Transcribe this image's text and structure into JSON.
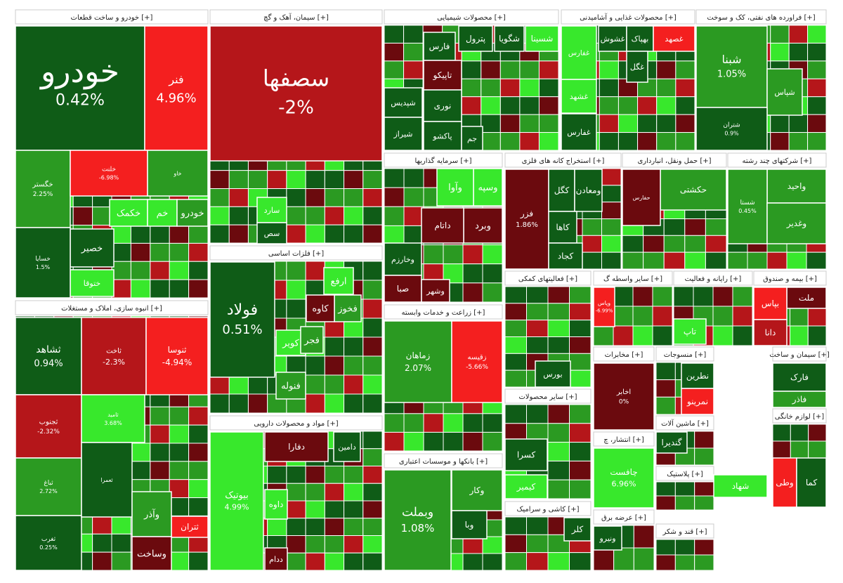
{
  "chart_data": {
    "type": "treemap",
    "colors": {
      "dark_green": "#0f5c17",
      "mid_green": "#2b9a22",
      "light_green": "#38e82c",
      "dark_red": "#6b0a0e",
      "mid_red": "#b5161a",
      "bright_red": "#f41f1f"
    },
    "sectors": [
      {
        "title": "خودرو و ساخت قطعات [+]",
        "stocks": [
          {
            "name": "خودرو",
            "change": "0.42%",
            "color": "dark_green"
          },
          {
            "name": "فنر",
            "change": "4.96%",
            "color": "bright_red"
          },
          {
            "name": "خگستر",
            "change": "2.25%",
            "color": "mid_green"
          },
          {
            "name": "خلنت",
            "change": "-6.98%",
            "color": "bright_red"
          },
          {
            "name": "خاو",
            "change": "",
            "color": "mid_green"
          },
          {
            "name": "خکمک",
            "change": "",
            "color": "light_green"
          },
          {
            "name": "خم",
            "change": "",
            "color": "light_green"
          },
          {
            "name": "خصیر",
            "change": "",
            "color": "dark_green"
          },
          {
            "name": "خودرو",
            "change": "",
            "color": "mid_green"
          },
          {
            "name": "ختوقا",
            "change": "",
            "color": "light_green"
          },
          {
            "name": "خسایا",
            "change": "1.5%",
            "color": "dark_green"
          }
        ]
      },
      {
        "title": "انبوه سازی، املاک و مستغلات [+]",
        "stocks": [
          {
            "name": "ثشاهد",
            "change": "0.94%",
            "color": "dark_green"
          },
          {
            "name": "ثاخت",
            "change": "-2.3%",
            "color": "mid_red"
          },
          {
            "name": "ثنوسا",
            "change": "-4.94%",
            "color": "bright_red"
          },
          {
            "name": "ثجنوب",
            "change": "-2.32%",
            "color": "mid_red"
          },
          {
            "name": "ثباغ",
            "change": "2.72%",
            "color": "mid_green"
          },
          {
            "name": "ثغرب",
            "change": "0.25%",
            "color": "dark_green"
          },
          {
            "name": "ثامید",
            "change": "3.68%",
            "color": "light_green"
          },
          {
            "name": "ثعمرا",
            "change": "",
            "color": "dark_green"
          },
          {
            "name": "ثتران",
            "change": "",
            "color": "bright_red"
          },
          {
            "name": "وآذر",
            "change": "",
            "color": "mid_green"
          },
          {
            "name": "وساخت",
            "change": "",
            "color": "dark_red"
          }
        ]
      },
      {
        "title": "سیمان، آهک و گچ [+]",
        "stocks": [
          {
            "name": "سصفها",
            "change": "-2%",
            "color": "mid_red"
          },
          {
            "name": "سارد",
            "change": "",
            "color": "light_green"
          },
          {
            "name": "سص",
            "change": "",
            "color": "dark_green"
          }
        ]
      },
      {
        "title": "فلزات اساسی [+]",
        "stocks": [
          {
            "name": "فولاد",
            "change": "0.51%",
            "color": "dark_green"
          },
          {
            "name": "ارفع",
            "change": "",
            "color": "light_green"
          },
          {
            "name": "فخوز",
            "change": "",
            "color": "mid_green"
          },
          {
            "name": "کاوه",
            "change": "",
            "color": "dark_red"
          },
          {
            "name": "کویر",
            "change": "",
            "color": "light_green"
          },
          {
            "name": "فجر",
            "change": "",
            "color": "mid_green"
          },
          {
            "name": "فنوله",
            "change": "",
            "color": "mid_green"
          }
        ]
      },
      {
        "title": "مواد و محصولات دارویی [+]",
        "stocks": [
          {
            "name": "بیوتیک",
            "change": "4.99%",
            "color": "light_green"
          },
          {
            "name": "دامین",
            "change": "",
            "color": "dark_green"
          },
          {
            "name": "دفارا",
            "change": "",
            "color": "dark_red"
          },
          {
            "name": "داوه",
            "change": "",
            "color": "light_green"
          },
          {
            "name": "ددام",
            "change": "",
            "color": "dark_red"
          }
        ]
      },
      {
        "title": "محصولات شیمیایی [+]",
        "stocks": [
          {
            "name": "فارس",
            "change": "",
            "color": "dark_green"
          },
          {
            "name": "شگویا",
            "change": "",
            "color": "dark_green"
          },
          {
            "name": "شسینا",
            "change": "",
            "color": "light_green"
          },
          {
            "name": "پترول",
            "change": "",
            "color": "dark_green"
          },
          {
            "name": "تاپیکو",
            "change": "",
            "color": "dark_red"
          },
          {
            "name": "شپدیس",
            "change": "",
            "color": "dark_green"
          },
          {
            "name": "نوری",
            "change": "",
            "color": "dark_green"
          },
          {
            "name": "شیراز",
            "change": "",
            "color": "dark_green"
          },
          {
            "name": "پاکشو",
            "change": "",
            "color": "dark_green"
          },
          {
            "name": "جم",
            "change": "",
            "color": "dark_green"
          }
        ]
      },
      {
        "title": "محصولات غذایی و آشامیدنی [+]",
        "stocks": [
          {
            "name": "غفارس",
            "change": "",
            "color": "dark_green"
          },
          {
            "name": "غشوش",
            "change": "",
            "color": "dark_green"
          },
          {
            "name": "بهپاک",
            "change": "",
            "color": "dark_green"
          },
          {
            "name": "غصهد",
            "change": "",
            "color": "bright_red"
          },
          {
            "name": "غگل",
            "change": "",
            "color": "dark_green"
          },
          {
            "name": "غشهد",
            "change": "",
            "color": "light_green"
          },
          {
            "name": "غفارس",
            "change": "",
            "color": "light_green"
          }
        ]
      },
      {
        "title": "فراورده های نفتی، کک و سوخت [+]",
        "stocks": [
          {
            "name": "شبنا",
            "change": "1.05%",
            "color": "mid_green"
          },
          {
            "name": "شپاس",
            "change": "",
            "color": "mid_green"
          },
          {
            "name": "شتران",
            "change": "0.9%",
            "color": "dark_green"
          }
        ]
      },
      {
        "title": "سرمایه گذاریها [+]",
        "stocks": [
          {
            "name": "وسپه",
            "change": "",
            "color": "light_green"
          },
          {
            "name": "وآوا",
            "change": "",
            "color": "light_green"
          },
          {
            "name": "وبرد",
            "change": "",
            "color": "dark_red"
          },
          {
            "name": "داتام",
            "change": "",
            "color": "dark_red"
          },
          {
            "name": "وخارزم",
            "change": "",
            "color": "dark_green"
          },
          {
            "name": "صبا",
            "change": "",
            "color": "dark_red"
          },
          {
            "name": "وشهر",
            "change": "",
            "color": "dark_red"
          }
        ]
      },
      {
        "title": "استخراج کانه های فلزی [+]",
        "stocks": [
          {
            "name": "فزر",
            "change": "1.86%",
            "color": "dark_red"
          },
          {
            "name": "کگل",
            "change": "",
            "color": "dark_green"
          },
          {
            "name": "ومعادن",
            "change": "",
            "color": "dark_green"
          },
          {
            "name": "کاها",
            "change": "",
            "color": "dark_green"
          },
          {
            "name": "کجاد",
            "change": "",
            "color": "dark_green"
          }
        ]
      },
      {
        "title": "حمل ونقل، انبارداری [+]",
        "stocks": [
          {
            "name": "حکشتی",
            "change": "",
            "color": "mid_green"
          },
          {
            "name": "حفارس",
            "change": "",
            "color": "dark_red"
          }
        ]
      },
      {
        "title": "شرکتهای چند رشته [+]",
        "stocks": [
          {
            "name": "واحید",
            "change": "",
            "color": "mid_green"
          },
          {
            "name": "شستا",
            "change": "0.45%",
            "color": "mid_green"
          },
          {
            "name": "وغدیر",
            "change": "",
            "color": "mid_green"
          }
        ]
      },
      {
        "title": "زراعت و خدمات وابسته [+]",
        "stocks": [
          {
            "name": "زماهان",
            "change": "2.07%",
            "color": "mid_green"
          },
          {
            "name": "زقیسه",
            "change": "-5.66%",
            "color": "bright_red"
          }
        ]
      },
      {
        "title": "بانکها و موسسات اعتباری [+]",
        "stocks": [
          {
            "name": "وبملت",
            "change": "1.08%",
            "color": "mid_green"
          },
          {
            "name": "وکار",
            "change": "",
            "color": "mid_green"
          },
          {
            "name": "وبا",
            "change": "",
            "color": "dark_green"
          }
        ]
      },
      {
        "title": "فعالیتهای کمکی [+]",
        "stocks": [
          {
            "name": "بورس",
            "change": "",
            "color": "dark_green"
          }
        ]
      },
      {
        "title": "سایر محصولات [+]",
        "stocks": [
          {
            "name": "کسرا",
            "change": "",
            "color": "dark_green"
          },
          {
            "name": "کیمیر",
            "change": "",
            "color": "light_green"
          }
        ]
      },
      {
        "title": "کاشی و سرامیک [+]",
        "stocks": [
          {
            "name": "کلر",
            "change": "",
            "color": "dark_green"
          }
        ]
      },
      {
        "title": "سایر واسطه گ [+]",
        "stocks": [
          {
            "name": "وپاس",
            "change": "-6.99%",
            "color": "bright_red"
          }
        ]
      },
      {
        "title": "رایانه و فعالیت [+]",
        "stocks": [
          {
            "name": "تاپ",
            "change": "",
            "color": "light_green"
          }
        ]
      },
      {
        "title": "بیمه و صندوق [+]",
        "stocks": [
          {
            "name": "ملت",
            "change": "",
            "color": "dark_red"
          },
          {
            "name": "بپاس",
            "change": "",
            "color": "bright_red"
          },
          {
            "name": "دانا",
            "change": "",
            "color": "mid_red"
          }
        ]
      },
      {
        "title": "مخابرات [+]",
        "stocks": [
          {
            "name": "اخابر",
            "change": "0%",
            "color": "dark_red"
          }
        ]
      },
      {
        "title": "انتشار، چ [+]",
        "stocks": [
          {
            "name": "چافست",
            "change": "6.96%",
            "color": "light_green"
          }
        ]
      },
      {
        "title": "منسوجات [+]",
        "stocks": [
          {
            "name": "نطرین",
            "change": "",
            "color": "dark_green"
          },
          {
            "name": "نمرینو",
            "change": "",
            "color": "bright_red"
          }
        ]
      },
      {
        "title": "سیمان و ساخت [+]",
        "stocks": [
          {
            "name": "فارک",
            "change": "",
            "color": "dark_green"
          },
          {
            "name": "فاذر",
            "change": "",
            "color": "mid_green"
          }
        ]
      },
      {
        "title": "ماشین آلات [+]",
        "stocks": [
          {
            "name": "گندیرا",
            "change": "",
            "color": "dark_green"
          }
        ]
      },
      {
        "title": "پلاستیک [+]",
        "stocks": [
          {
            "name": "شهاد",
            "change": "",
            "color": "light_green"
          }
        ]
      },
      {
        "title": "عرضه برق [+]",
        "stocks": [
          {
            "name": "ونیرو",
            "change": "",
            "color": "dark_green"
          }
        ]
      },
      {
        "title": "قند و شکر [+]",
        "stocks": []
      },
      {
        "title": "لوازم خانگی [+]",
        "stocks": [
          {
            "name": "وطی",
            "change": "",
            "color": "bright_red"
          },
          {
            "name": "کما",
            "change": "",
            "color": "dark_green"
          }
        ]
      }
    ]
  }
}
